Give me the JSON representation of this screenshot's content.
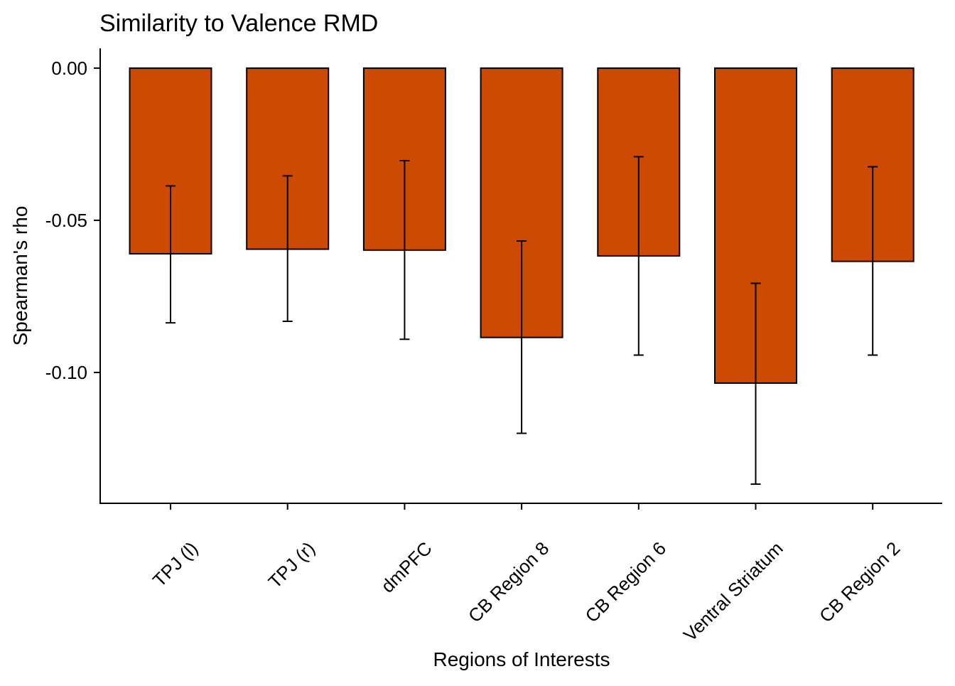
{
  "chart_data": {
    "type": "bar",
    "title": "Similarity to Valence RMD",
    "xlabel": "Regions of Interests",
    "ylabel": "Spearman's rho",
    "categories": [
      "TPJ (l)",
      "TPJ (r)",
      "dmPFC",
      "CB Region 8",
      "CB Region 6",
      "Ventral Striatum",
      "CB Region 2"
    ],
    "values": [
      -0.061,
      -0.0595,
      -0.0598,
      -0.0885,
      -0.0617,
      -0.1035,
      -0.0635
    ],
    "error_low": [
      -0.0837,
      -0.0832,
      -0.0891,
      -0.12,
      -0.0943,
      -0.1367,
      -0.0943
    ],
    "error_high": [
      -0.0387,
      -0.0354,
      -0.0304,
      -0.0568,
      -0.0291,
      -0.0707,
      -0.0324
    ],
    "ylim": [
      -0.143,
      0.0065
    ],
    "yticks": [
      0.0,
      -0.05,
      -0.1
    ],
    "ytick_labels": [
      "0.00",
      "-0.05",
      "-0.10"
    ],
    "bar_color": "#CC4A02",
    "grid": false,
    "legend": "none"
  }
}
